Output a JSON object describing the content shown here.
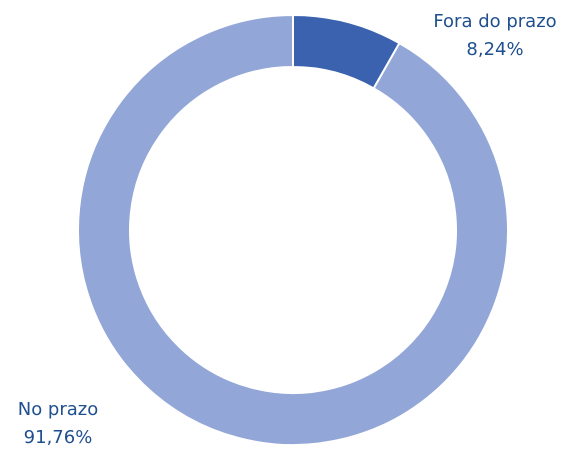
{
  "chart_data": {
    "type": "donut",
    "categories": [
      "Fora do prazo",
      "No prazo"
    ],
    "values": [
      8.24,
      91.76
    ],
    "value_labels": [
      "8,24%",
      "91,76%"
    ],
    "colors": [
      "#3b62ae",
      "#92a6d7"
    ]
  }
}
